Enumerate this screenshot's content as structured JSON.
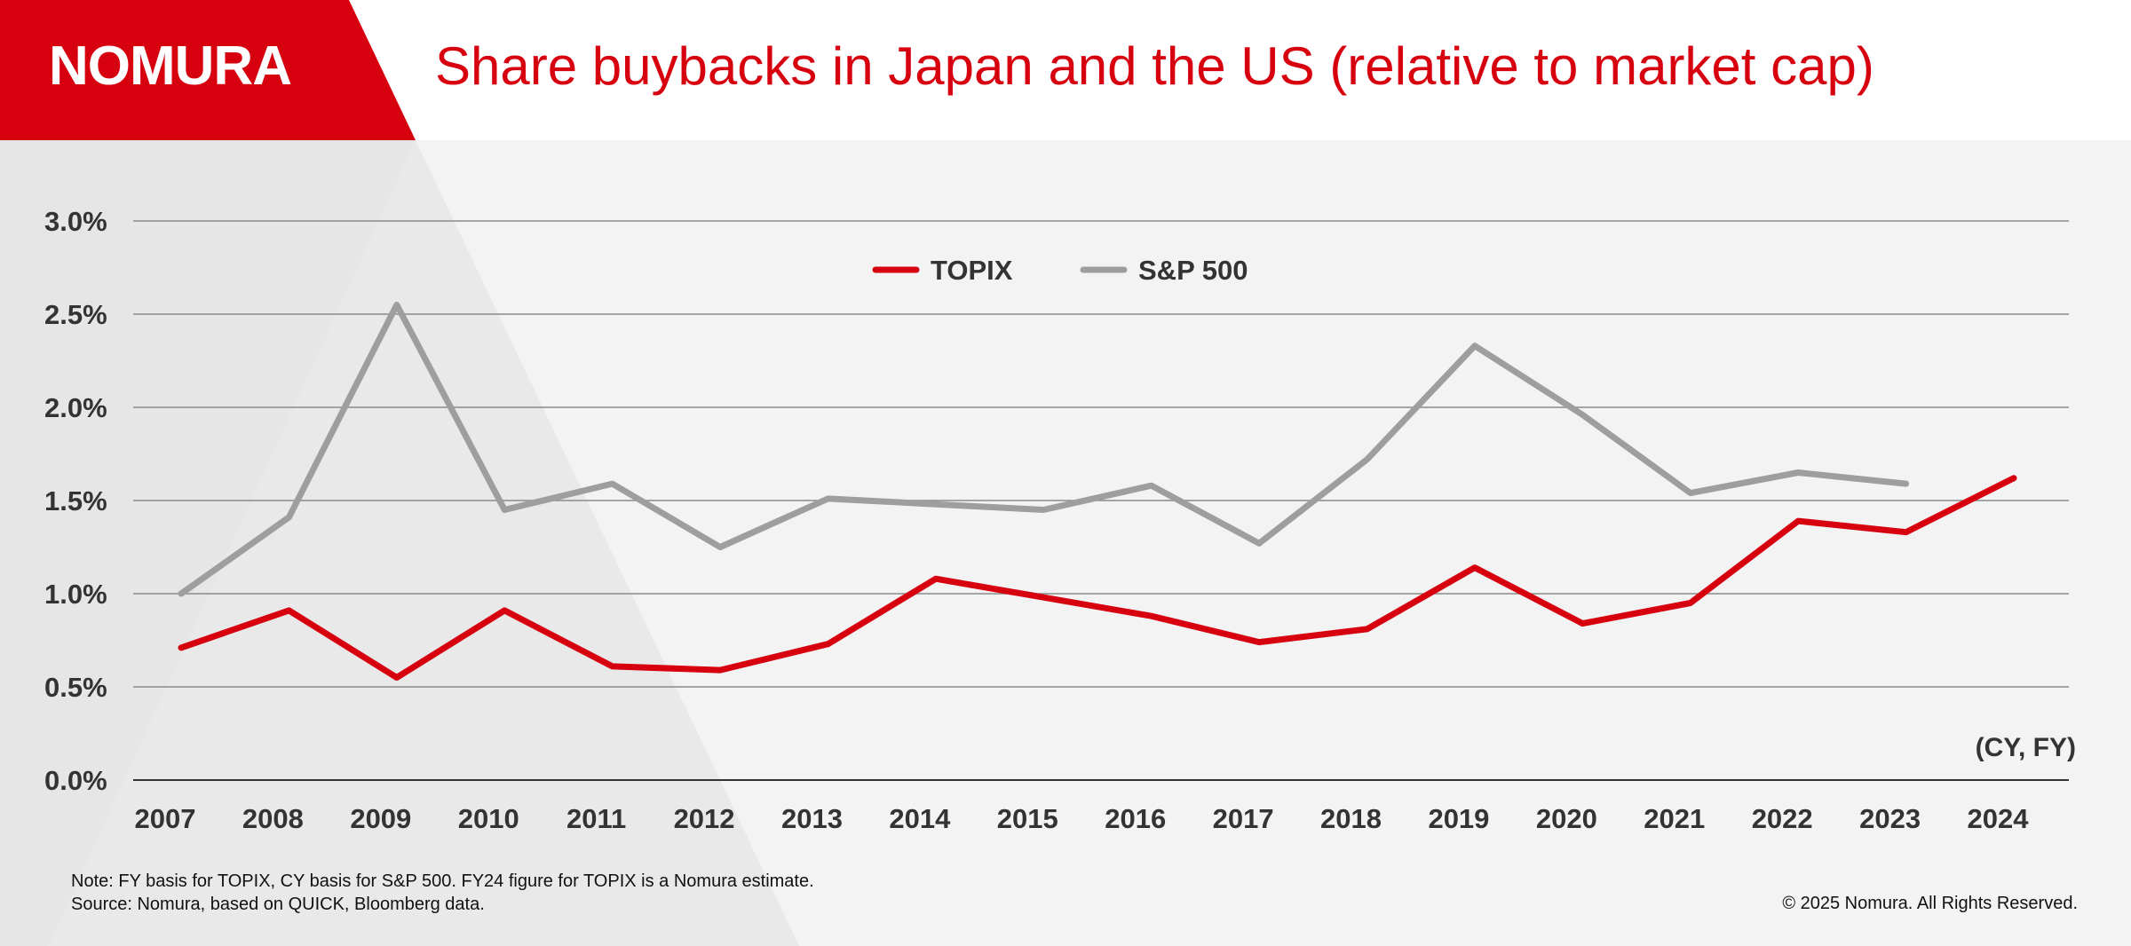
{
  "brand": {
    "logo_text": "NOMURA",
    "accent_color": "#d7000f"
  },
  "header": {
    "title": "Share buybacks in Japan and the US (relative to market cap)"
  },
  "chart_data": {
    "type": "line",
    "title": "Share buybacks in Japan and the US (relative to market cap)",
    "xlabel": "(CY, FY)",
    "ylabel": "",
    "categories": [
      "2007",
      "2008",
      "2009",
      "2010",
      "2011",
      "2012",
      "2013",
      "2014",
      "2015",
      "2016",
      "2017",
      "2018",
      "2019",
      "2020",
      "2021",
      "2022",
      "2023",
      "2024"
    ],
    "y_ticks": [
      "0.0%",
      "0.5%",
      "1.0%",
      "1.5%",
      "2.0%",
      "2.5%",
      "3.0%"
    ],
    "ylim": [
      0,
      3.0
    ],
    "grid": true,
    "legend_position": "top-center",
    "series": [
      {
        "name": "TOPIX",
        "color": "#d7000f",
        "values": [
          0.71,
          0.91,
          0.55,
          0.91,
          0.61,
          0.59,
          0.73,
          1.08,
          0.98,
          0.88,
          0.74,
          0.81,
          1.14,
          0.84,
          0.95,
          1.39,
          1.33,
          1.62
        ]
      },
      {
        "name": "S&P 500",
        "color": "#9e9e9e",
        "values": [
          1.0,
          1.41,
          2.55,
          1.45,
          1.59,
          1.25,
          1.51,
          1.48,
          1.45,
          1.58,
          1.27,
          1.72,
          2.33,
          1.96,
          1.54,
          1.65,
          1.59,
          null
        ]
      }
    ]
  },
  "footer": {
    "note_line1": "Note: FY basis for TOPIX, CY basis for S&P 500. FY24 figure for TOPIX is a Nomura estimate.",
    "note_line2": "Source: Nomura, based on QUICK, Bloomberg data.",
    "copyright": "© 2025 Nomura. All Rights Reserved."
  }
}
